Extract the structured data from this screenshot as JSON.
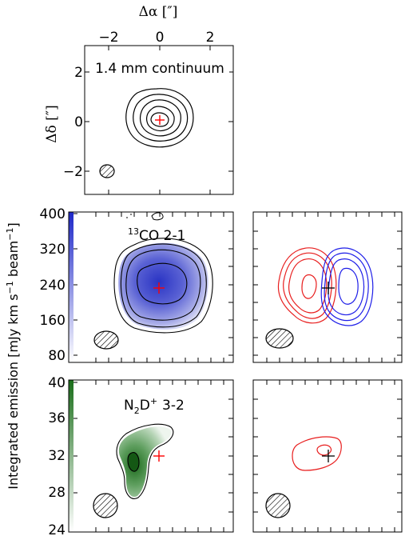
{
  "chart_data": [
    {
      "type": "contour",
      "panel": "continuum",
      "title": "1.4 mm continuum",
      "xlabel": "Δα [″]",
      "ylabel": "Δδ [″]",
      "xticks": [
        "−2",
        "0",
        "2"
      ],
      "yticks": [
        "2",
        "0",
        "−2"
      ],
      "xlim": [
        3,
        -3
      ],
      "ylim": [
        -3,
        3
      ],
      "marker": {
        "x": 0,
        "y": 0,
        "color": "#ff0000"
      },
      "contour_color": "#000000"
    },
    {
      "type": "heatmap",
      "panel": "13co-moment0",
      "title_sup": "13",
      "title_main": "CO 2-1",
      "colorbar_ticks": [
        "400",
        "320",
        "240",
        "160",
        "80"
      ],
      "colorbar_range": [
        60,
        400
      ],
      "colormap": [
        "#ffffff",
        "#1e28c8"
      ],
      "marker": {
        "x": 0,
        "y": 0,
        "color": "#ff0000"
      }
    },
    {
      "type": "contour",
      "panel": "13co-channels",
      "series": [
        {
          "name": "red",
          "color": "#e81e1e"
        },
        {
          "name": "blue",
          "color": "#1e1ee8"
        }
      ],
      "marker": {
        "x": 0,
        "y": 0,
        "color": "#000000"
      }
    },
    {
      "type": "heatmap",
      "panel": "n2d-moment0",
      "title_n": "N",
      "title_sub": "2",
      "title_d": "D",
      "title_sup": "+",
      "title_trans": "3-2",
      "colorbar_ticks": [
        "40",
        "36",
        "32",
        "28",
        "24"
      ],
      "colorbar_range": [
        24,
        40
      ],
      "colormap": [
        "#ffffff",
        "#1a6e1a"
      ],
      "marker": {
        "x": 0,
        "y": 0,
        "color": "#ff0000"
      }
    },
    {
      "type": "contour",
      "panel": "n2d-channels",
      "series": [
        {
          "name": "red",
          "color": "#e81e1e"
        }
      ],
      "marker": {
        "x": 0,
        "y": 0,
        "color": "#000000"
      }
    }
  ],
  "shared_ylabel": "Integrated emission [mJy km s",
  "shared_ylabel_sup1": "−1",
  "shared_ylabel_mid": " beam",
  "shared_ylabel_sup2": "−1",
  "shared_ylabel_end": "]"
}
